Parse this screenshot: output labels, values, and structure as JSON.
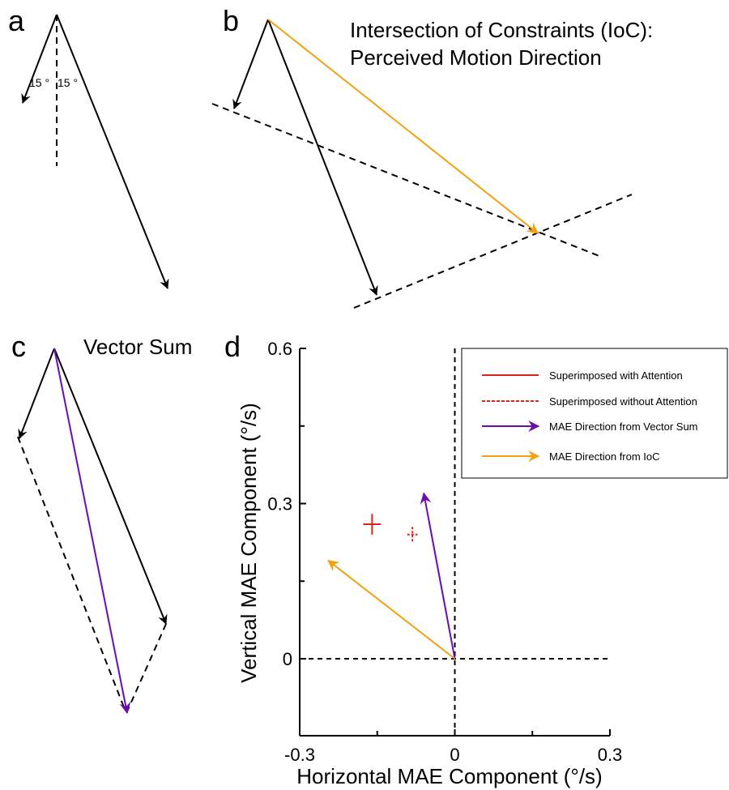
{
  "panels": {
    "a": {
      "letter": "a",
      "angle_left": "15 °",
      "angle_right": "15 °"
    },
    "b": {
      "letter": "b",
      "title_line1": "Intersection of Constraints (IoC):",
      "title_line2": "Perceived Motion Direction"
    },
    "c": {
      "letter": "c",
      "title": "Vector Sum"
    },
    "d": {
      "letter": "d"
    }
  },
  "colors": {
    "black": "#000000",
    "red": "#e0241b",
    "purple": "#6a0dad",
    "orange": "#f5a00f"
  },
  "chart_data": {
    "type": "scatter",
    "xlabel": "Horizontal MAE Component (°/s)",
    "ylabel": "Vertical MAE Component (°/s)",
    "xlim": [
      -0.3,
      0.3
    ],
    "ylim": [
      -0.15,
      0.6
    ],
    "x_ticks": [
      -0.3,
      0,
      0.3
    ],
    "x_tick_labels": [
      "-0.3",
      "0",
      "0.3"
    ],
    "y_ticks": [
      0,
      0.3,
      0.6
    ],
    "y_tick_labels": [
      "0",
      "0.3",
      "0.6"
    ],
    "reference_lines": {
      "x": 0,
      "y": 0,
      "style": "dashed"
    },
    "legend_position": "top-right",
    "series": [
      {
        "name": "Superimposed with Attention",
        "kind": "cross",
        "style": "solid",
        "color": "#e0241b",
        "x": -0.16,
        "y": 0.26,
        "x_err": 0.017,
        "y_err": 0.02
      },
      {
        "name": "Superimposed without Attention",
        "kind": "cross",
        "style": "dashed",
        "color": "#e0241b",
        "x": -0.082,
        "y": 0.24,
        "x_err": 0.01,
        "y_err": 0.015
      },
      {
        "name": "MAE Direction from Vector Sum",
        "kind": "arrow",
        "style": "solid",
        "color": "#6a0dad",
        "x0": 0,
        "y0": 0,
        "x1": -0.06,
        "y1": 0.32
      },
      {
        "name": "MAE Direction from IoC",
        "kind": "arrow",
        "style": "solid",
        "color": "#f5a00f",
        "x0": 0,
        "y0": 0,
        "x1": -0.245,
        "y1": 0.19
      }
    ]
  }
}
